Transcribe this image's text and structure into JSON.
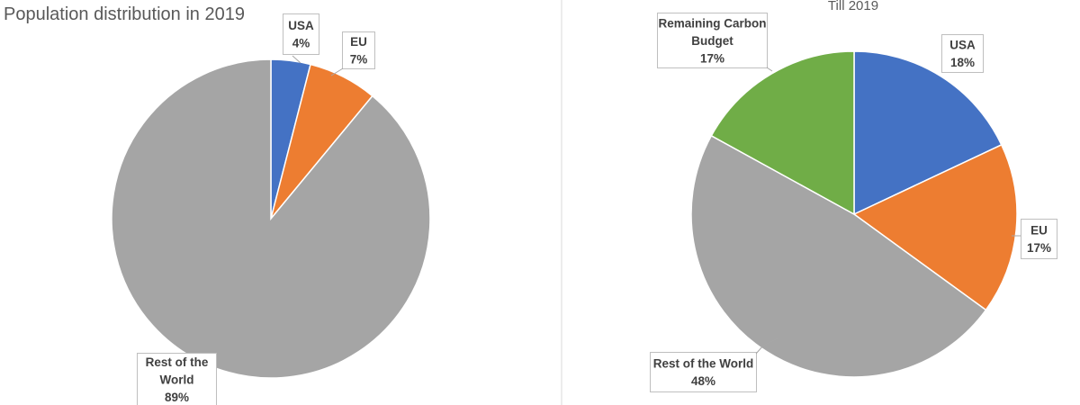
{
  "chart_data": [
    {
      "type": "pie",
      "title": "Population distribution in 2019",
      "categories": [
        "USA",
        "EU",
        "Rest of the World"
      ],
      "values": [
        4,
        7,
        89
      ],
      "labels": [
        [
          "USA",
          "4%"
        ],
        [
          "EU",
          "7%"
        ],
        [
          "Rest of the",
          "World",
          "89%"
        ]
      ],
      "colors": [
        "#4472c4",
        "#ed7d31",
        "#a5a5a5"
      ],
      "start_angle_deg": 0,
      "direction": "clockwise"
    },
    {
      "type": "pie",
      "title": "Till 2019",
      "categories": [
        "USA",
        "EU",
        "Rest of the World",
        "Remaining Carbon Budget"
      ],
      "values": [
        18,
        17,
        48,
        17
      ],
      "labels": [
        [
          "USA",
          "18%"
        ],
        [
          "EU",
          "17%"
        ],
        [
          "Rest of the World",
          "48%"
        ],
        [
          "Remaining Carbon",
          "Budget",
          "17%"
        ]
      ],
      "colors": [
        "#4472c4",
        "#ed7d31",
        "#a5a5a5",
        "#70ad47"
      ],
      "start_angle_deg": 0,
      "direction": "clockwise"
    }
  ]
}
